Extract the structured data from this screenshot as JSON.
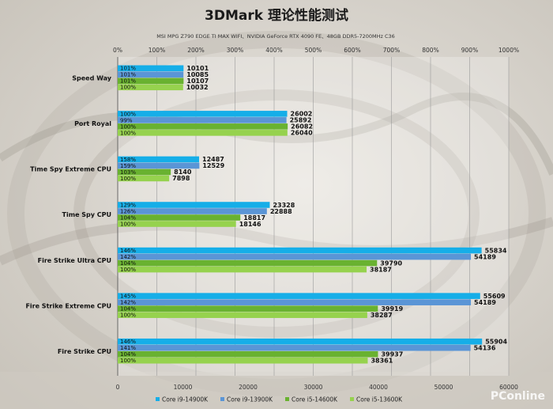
{
  "chart_data": {
    "type": "bar",
    "orientation": "horizontal",
    "title": "3DMark 理论性能测试",
    "subtitle": "MSI MPG Z790 EDGE TI MAX WIFI、NVIDIA GeForce RTX 4090 FE、48GB DDR5-7200MHz C36",
    "categories": [
      "Speed Way",
      "Port Royal",
      "Time Spy Extreme CPU",
      "Time Spy CPU",
      "Fire Strike Ultra CPU",
      "Fire Strike Extreme CPU",
      "Fire Strike CPU"
    ],
    "series": [
      {
        "name": "Core i9-14900K",
        "color": "#15aee8",
        "values": [
          10101,
          26002,
          12487,
          23328,
          55834,
          55609,
          55904
        ],
        "percent_labels": [
          "101%",
          "100%",
          "158%",
          "129%",
          "146%",
          "145%",
          "146%"
        ]
      },
      {
        "name": "Core i9-13900K",
        "color": "#5a95d6",
        "values": [
          10085,
          25892,
          12529,
          22888,
          54189,
          54189,
          54136
        ],
        "percent_labels": [
          "101%",
          "99%",
          "159%",
          "126%",
          "142%",
          "142%",
          "141%"
        ]
      },
      {
        "name": "Core i5-14600K",
        "color": "#69b230",
        "values": [
          10107,
          26082,
          8140,
          18817,
          39790,
          39919,
          39937
        ],
        "percent_labels": [
          "101%",
          "100%",
          "103%",
          "104%",
          "104%",
          "104%",
          "104%"
        ]
      },
      {
        "name": "Core i5-13600K",
        "color": "#96d24e",
        "values": [
          10032,
          26040,
          7898,
          18146,
          38187,
          38287,
          38361
        ],
        "percent_labels": [
          "100%",
          "100%",
          "100%",
          "100%",
          "100%",
          "100%",
          "100%"
        ]
      }
    ],
    "xlim": [
      0,
      60000
    ],
    "x_ticks": [
      "0",
      "10000",
      "20000",
      "30000",
      "40000",
      "50000",
      "60000"
    ],
    "top_axis_ticks": [
      "0%",
      "100%",
      "200%",
      "300%",
      "400%",
      "500%",
      "600%",
      "700%",
      "800%",
      "900%",
      "1000%"
    ],
    "grid": true,
    "legend_position": "bottom"
  },
  "watermark": "PConline"
}
